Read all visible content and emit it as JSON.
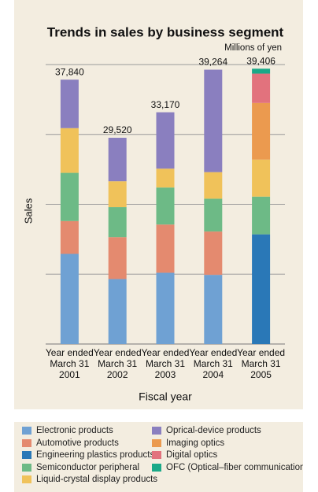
{
  "chart_data": {
    "type": "bar",
    "stacked": true,
    "title": "Trends in sales by business segment",
    "unit_label": "Millions of yen",
    "y_label": "Sales",
    "x_label": "Fiscal year",
    "categories": [
      "Year ended\nMarch 31\n2001",
      "Year ended\nMarch 31\n2002",
      "Year ended\nMarch 31\n2003",
      "Year ended\nMarch 31\n2004",
      "Year ended\nMarch 31\n2005"
    ],
    "totals": [
      37840,
      29520,
      33170,
      39264,
      39406
    ],
    "total_labels": [
      "37,840",
      "29,520",
      "33,170",
      "39,264",
      "39,406"
    ],
    "series": [
      {
        "name": "Electronic products",
        "color": "#6fa1d3",
        "values": [
          12900,
          9300,
          10200,
          9900,
          null
        ]
      },
      {
        "name": "Automotive products",
        "color": "#e48a6f",
        "values": [
          4700,
          6000,
          6900,
          6200,
          null
        ]
      },
      {
        "name": "Engineering plastics products",
        "color": "#2a78b7",
        "values": [
          null,
          null,
          null,
          null,
          15700
        ]
      },
      {
        "name": "Semiconductor peripheral",
        "color": "#6dba86",
        "values": [
          6900,
          4300,
          5300,
          4700,
          5400
        ]
      },
      {
        "name": "Liquid-crystal display products",
        "color": "#f0c25a",
        "values": [
          6400,
          3700,
          2700,
          3800,
          5300
        ]
      },
      {
        "name": "Oprical-device products",
        "color": "#8a7fbf",
        "values": [
          6940,
          6220,
          8070,
          14664,
          null
        ]
      },
      {
        "name": "Imaging optics",
        "color": "#eb9a4f",
        "values": [
          null,
          null,
          null,
          null,
          8100
        ]
      },
      {
        "name": "Digital optics",
        "color": "#e2727d",
        "values": [
          null,
          null,
          null,
          null,
          4200
        ]
      },
      {
        "name": "OFC (Optical–fiber communication)",
        "color": "#1aa988",
        "values": [
          null,
          null,
          null,
          null,
          706
        ]
      }
    ],
    "ylim": [
      0,
      40000
    ],
    "yticks": [
      0,
      10000,
      20000,
      30000,
      40000
    ],
    "grid": true
  }
}
